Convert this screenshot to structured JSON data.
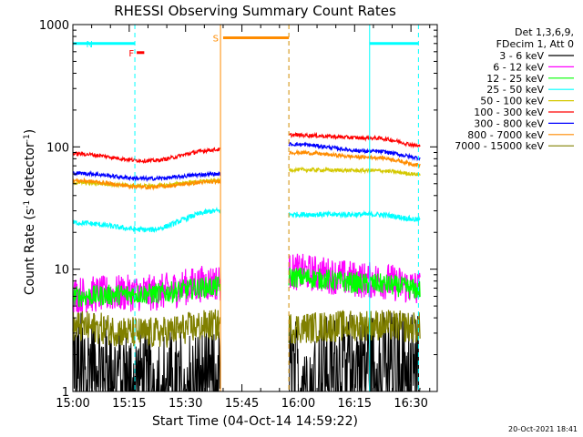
{
  "chart_data": {
    "type": "line",
    "title": "RHESSI Observing Summary Count Rates",
    "xlabel": "Start Time (04-Oct-14 14:59:22)",
    "ylabel_main": "Count Rate (s",
    "ylabel_sup1": "-1",
    "ylabel_mid": " detector",
    "ylabel_sup2": "-1",
    "ylabel_end": ")",
    "yscale": "log",
    "ylim": [
      1,
      1000
    ],
    "xlim_minutes": [
      0,
      97
    ],
    "x_ticks": [
      {
        "label": "15:00",
        "minute": 0
      },
      {
        "label": "15:15",
        "minute": 15
      },
      {
        "label": "15:30",
        "minute": 30
      },
      {
        "label": "15:45",
        "minute": 45
      },
      {
        "label": "16:00",
        "minute": 60
      },
      {
        "label": "16:15",
        "minute": 75
      },
      {
        "label": "16:30",
        "minute": 90
      }
    ],
    "y_ticks": [
      {
        "label": "1",
        "value": 1
      },
      {
        "label": "10",
        "value": 10
      },
      {
        "label": "100",
        "value": 100
      },
      {
        "label": "1000",
        "value": 1000
      }
    ],
    "legend_header": [
      "Det 1,3,6,9,",
      "FDecim 1, Att 0"
    ],
    "gaps_minutes": [
      [
        39.3,
        57.5
      ]
    ],
    "series": [
      {
        "name": "3 - 6 keV",
        "color": "#000000",
        "base": [
          1.9,
          1.3,
          1.4,
          1.6,
          1.9,
          2.0
        ],
        "noise": 0.9,
        "clip": 1.0
      },
      {
        "name": "6 - 12 keV",
        "color": "#ff00ff",
        "base": [
          6.2,
          6.4,
          7.8,
          9.5,
          8.1,
          6.8
        ],
        "noise": 0.35
      },
      {
        "name": "12 - 25 keV",
        "color": "#00ff00",
        "base": [
          6.0,
          6.3,
          7.2,
          8.6,
          7.6,
          6.7
        ],
        "noise": 0.2
      },
      {
        "name": "25 - 50 keV",
        "color": "#00ffff",
        "base": [
          24,
          21,
          30,
          28,
          28,
          25
        ],
        "noise": 0.05
      },
      {
        "name": "50 - 100 keV",
        "color": "#d4c800",
        "base": [
          51,
          48,
          53,
          65,
          64,
          59
        ],
        "noise": 0.035
      },
      {
        "name": "100 - 300 keV",
        "color": "#ff0000",
        "base": [
          88,
          77,
          95,
          125,
          118,
          100
        ],
        "noise": 0.035
      },
      {
        "name": "300 - 800 keV",
        "color": "#0000ff",
        "base": [
          61,
          55,
          60,
          105,
          92,
          80
        ],
        "noise": 0.035
      },
      {
        "name": "800 - 7000 keV",
        "color": "#ff8c00",
        "base": [
          53,
          47,
          52,
          90,
          82,
          70
        ],
        "noise": 0.035
      },
      {
        "name": "7000 - 15000 keV",
        "color": "#808000",
        "base": [
          3.4,
          3.0,
          3.5,
          3.3,
          3.5,
          3.3
        ],
        "noise": 0.3
      }
    ],
    "annotations": {
      "N": {
        "label": "N",
        "color": "#00ffff",
        "bars": [
          [
            0,
            16.5
          ],
          [
            79,
            92
          ]
        ],
        "value": 700
      },
      "F": {
        "label": "F",
        "color": "#ff0000",
        "bars": [
          [
            17,
            19
          ]
        ],
        "value": 590
      },
      "S": {
        "label": "S",
        "color": "#ff8c00",
        "bars": [
          [
            40,
            57.5
          ]
        ],
        "value": 780
      },
      "cyan_lines": [
        0,
        16.5,
        57.5,
        79,
        92
      ],
      "orange_lines": [
        39.3,
        57.5
      ]
    }
  },
  "footer": {
    "date": "20-Oct-2021 18:41"
  }
}
